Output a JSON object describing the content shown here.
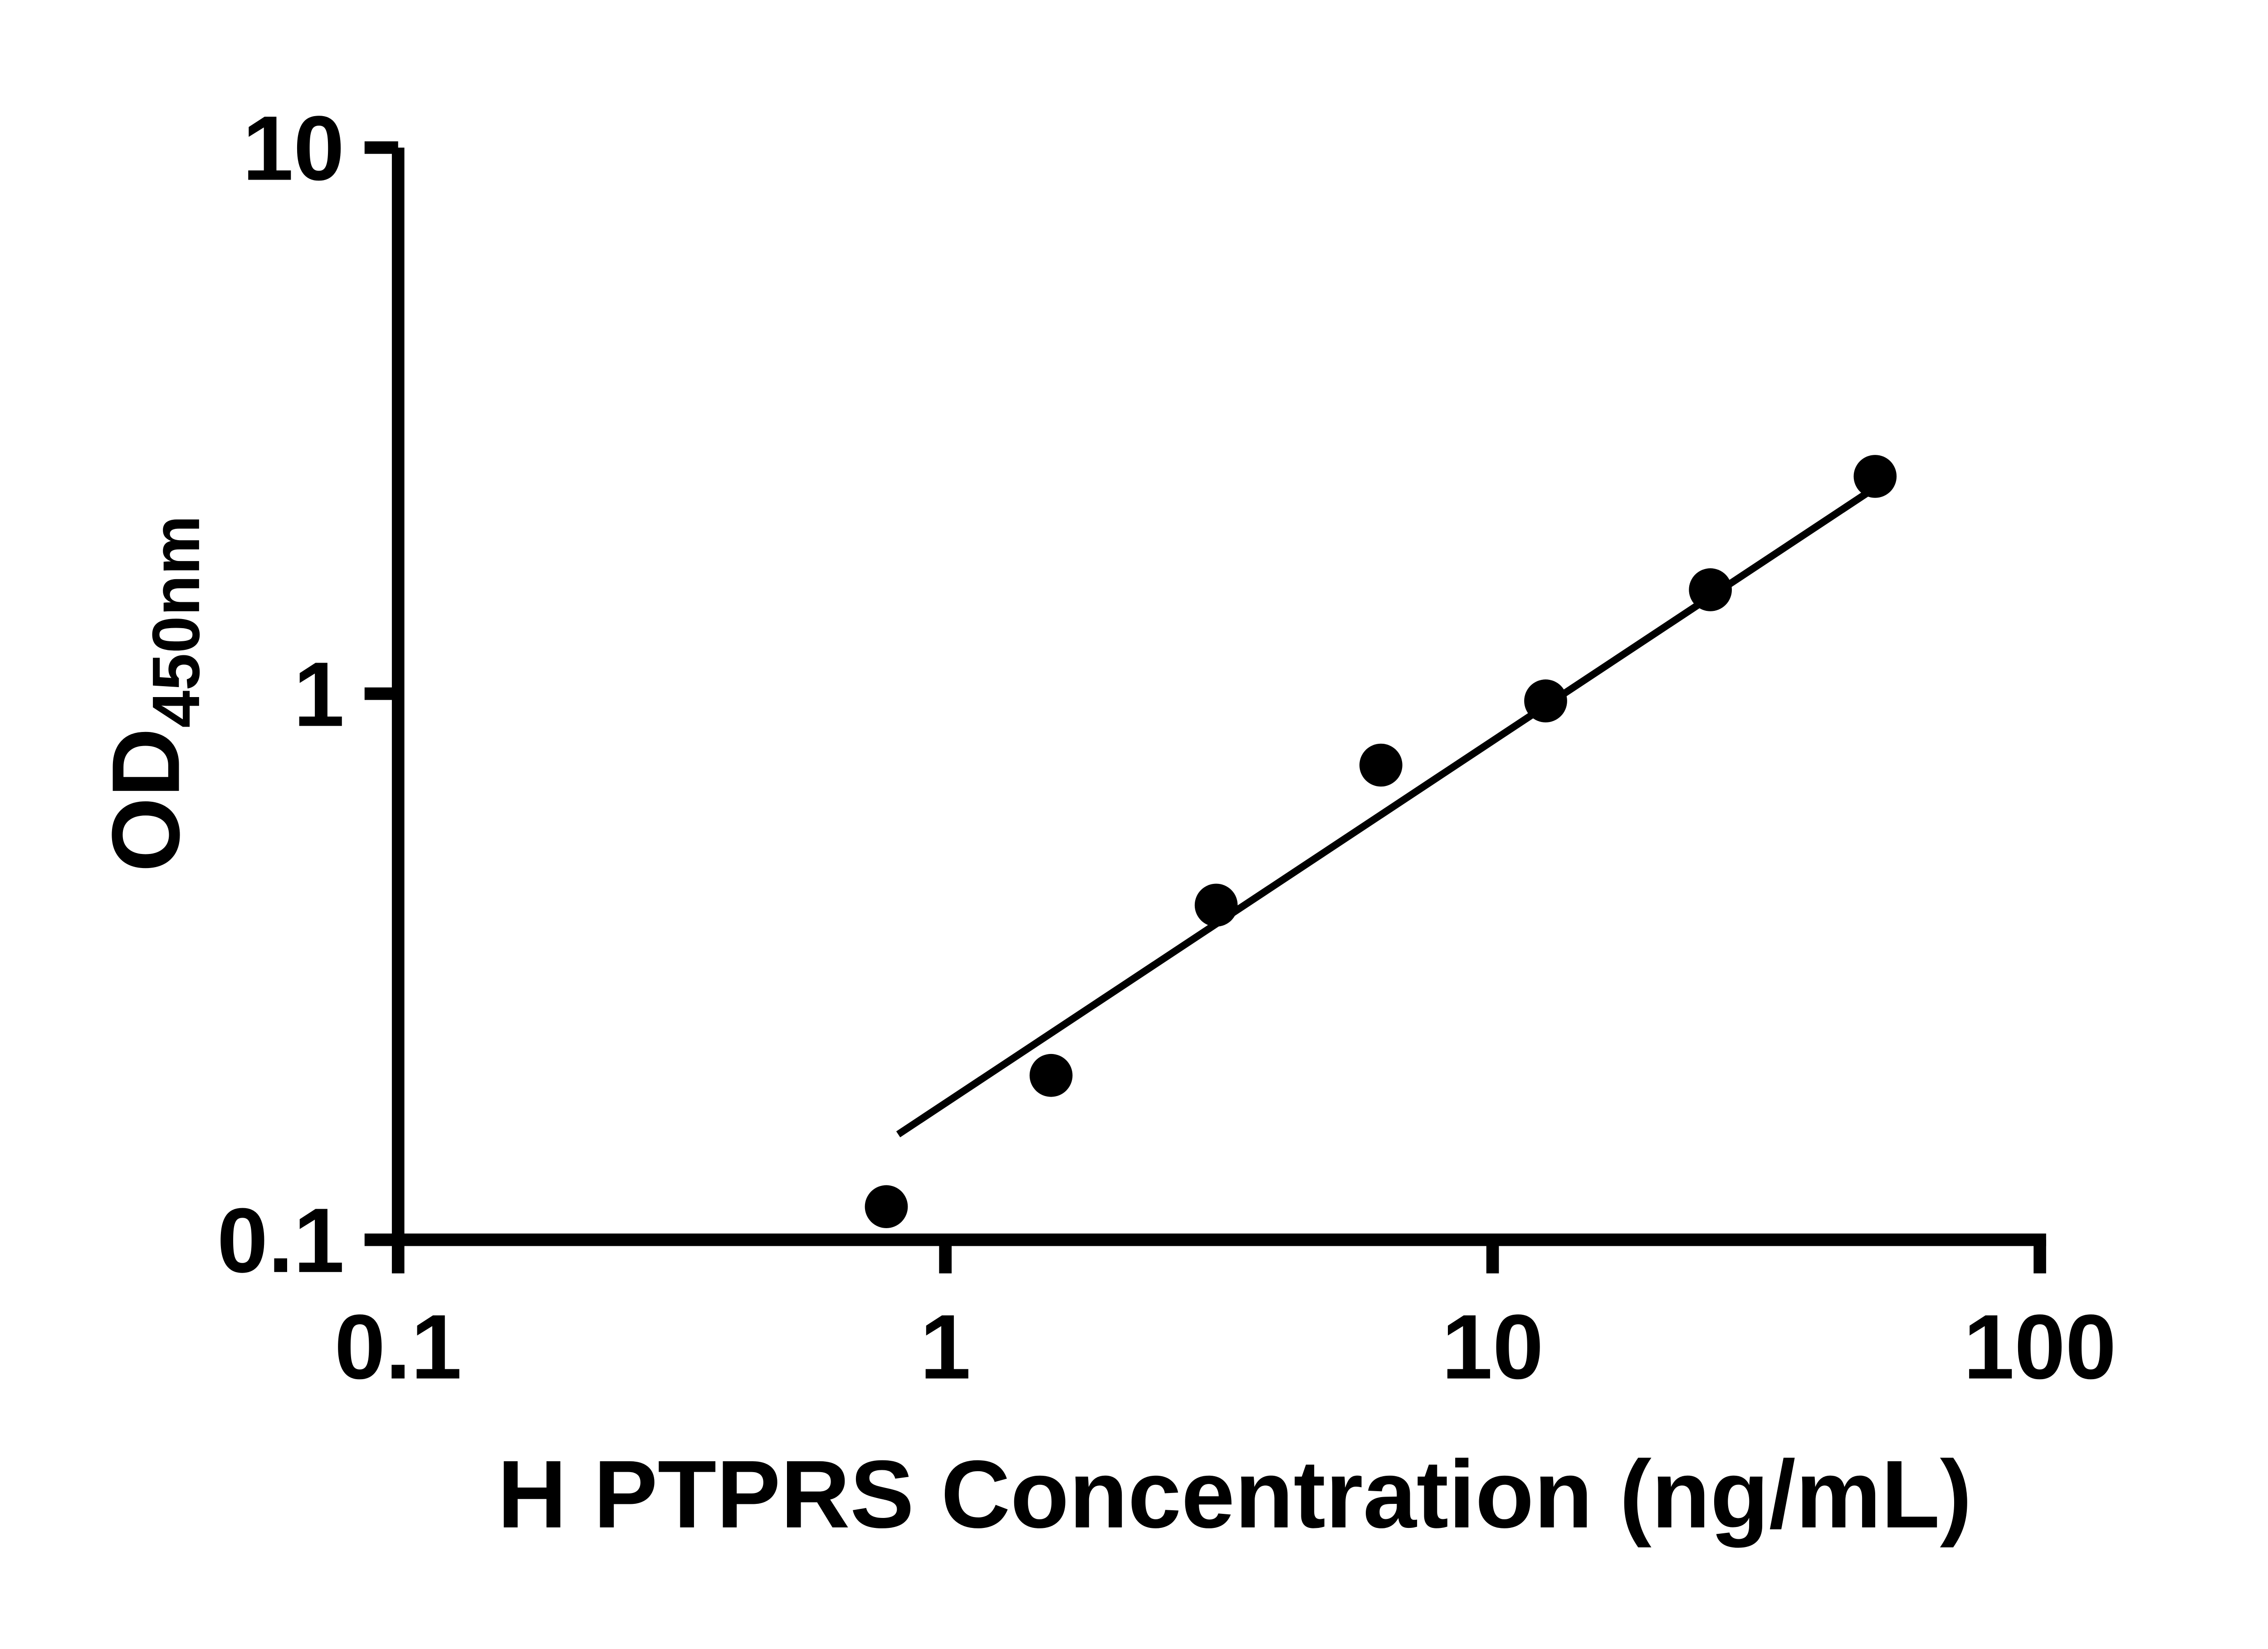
{
  "chart_data": {
    "type": "scatter",
    "title": "",
    "xlabel": "H PTPRS Concentration (ng/mL)",
    "ylabel_main": "OD",
    "ylabel_sub": "450nm",
    "x_scale": "log",
    "y_scale": "log",
    "xlim": [
      0.1,
      100
    ],
    "ylim": [
      0.1,
      10
    ],
    "grid": false,
    "legend": false,
    "x_ticks": [
      {
        "value": 0.1,
        "label": "0.1"
      },
      {
        "value": 1,
        "label": "1"
      },
      {
        "value": 10,
        "label": "10"
      },
      {
        "value": 100,
        "label": "100"
      }
    ],
    "y_ticks": [
      {
        "value": 0.1,
        "label": "0.1"
      },
      {
        "value": 1,
        "label": "1"
      },
      {
        "value": 10,
        "label": "10"
      }
    ],
    "points": [
      {
        "x": 0.78,
        "y": 0.115
      },
      {
        "x": 1.56,
        "y": 0.2
      },
      {
        "x": 3.125,
        "y": 0.41
      },
      {
        "x": 6.25,
        "y": 0.74
      },
      {
        "x": 12.5,
        "y": 0.97
      },
      {
        "x": 25,
        "y": 1.55
      },
      {
        "x": 50,
        "y": 2.5
      }
    ],
    "trend_line": {
      "x1": 0.82,
      "y1": 0.156,
      "x2": 51.8,
      "y2": 2.44
    },
    "marker_color": "#000000",
    "line_color": "#000000",
    "axis_color": "#000000",
    "background": "#ffffff"
  }
}
